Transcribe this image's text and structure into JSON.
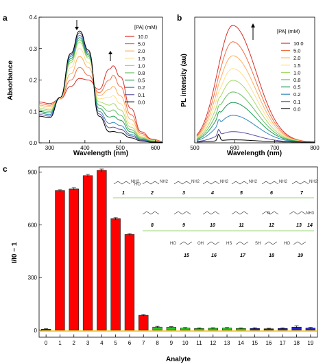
{
  "chart_data": [
    {
      "panel": "a",
      "type": "line",
      "xlabel": "Wavelength (nm)",
      "ylabel": "Absorbance",
      "xlim": [
        270,
        620
      ],
      "ylim": [
        0,
        0.4
      ],
      "xticks": [
        "300",
        "400",
        "500",
        "600"
      ],
      "yticks": [
        "0.0",
        "0.1",
        "0.2",
        "0.3",
        "0.4"
      ],
      "legend_title": "[PA] (mM)",
      "legend_position": "right",
      "series": [
        {
          "name": "10.0",
          "color": "#d73027",
          "x": [
            270,
            300,
            330,
            360,
            385,
            410,
            440,
            470,
            480,
            500,
            530,
            560,
            590,
            620
          ],
          "y": [
            0.13,
            0.125,
            0.14,
            0.18,
            0.205,
            0.2,
            0.17,
            0.235,
            0.245,
            0.21,
            0.11,
            0.035,
            0.012,
            0.005
          ]
        },
        {
          "name": "5.0",
          "color": "#f46d43",
          "x": [
            270,
            300,
            330,
            360,
            385,
            410,
            440,
            470,
            480,
            500,
            530,
            560,
            590,
            620
          ],
          "y": [
            0.125,
            0.12,
            0.14,
            0.2,
            0.24,
            0.215,
            0.16,
            0.2,
            0.215,
            0.18,
            0.09,
            0.03,
            0.01,
            0.005
          ]
        },
        {
          "name": "2.0",
          "color": "#fdae61",
          "x": [
            270,
            300,
            330,
            360,
            385,
            410,
            440,
            470,
            480,
            500,
            530,
            560,
            590,
            620
          ],
          "y": [
            0.12,
            0.115,
            0.14,
            0.22,
            0.275,
            0.24,
            0.15,
            0.17,
            0.18,
            0.15,
            0.075,
            0.025,
            0.009,
            0.004
          ]
        },
        {
          "name": "1.5",
          "color": "#fee08b",
          "x": [
            270,
            300,
            330,
            360,
            385,
            410,
            440,
            470,
            480,
            500,
            530,
            560,
            590,
            620
          ],
          "y": [
            0.115,
            0.11,
            0.145,
            0.24,
            0.3,
            0.255,
            0.14,
            0.145,
            0.15,
            0.125,
            0.06,
            0.02,
            0.008,
            0.004
          ]
        },
        {
          "name": "1.0",
          "color": "#a6d96a",
          "x": [
            270,
            300,
            330,
            360,
            385,
            410,
            440,
            470,
            480,
            500,
            530,
            560,
            590,
            620
          ],
          "y": [
            0.11,
            0.105,
            0.145,
            0.255,
            0.32,
            0.27,
            0.13,
            0.12,
            0.125,
            0.105,
            0.05,
            0.018,
            0.007,
            0.003
          ]
        },
        {
          "name": "0.8",
          "color": "#66bd63",
          "x": [
            270,
            300,
            330,
            360,
            385,
            410,
            440,
            470,
            480,
            500,
            530,
            560,
            590,
            620
          ],
          "y": [
            0.105,
            0.1,
            0.145,
            0.262,
            0.328,
            0.275,
            0.12,
            0.1,
            0.105,
            0.088,
            0.042,
            0.015,
            0.006,
            0.003
          ]
        },
        {
          "name": "0.5",
          "color": "#1a9850",
          "x": [
            270,
            300,
            330,
            360,
            385,
            410,
            440,
            470,
            480,
            500,
            530,
            560,
            590,
            620
          ],
          "y": [
            0.1,
            0.095,
            0.145,
            0.268,
            0.335,
            0.28,
            0.11,
            0.082,
            0.085,
            0.072,
            0.035,
            0.012,
            0.005,
            0.003
          ]
        },
        {
          "name": "0.2",
          "color": "#3288bd",
          "x": [
            270,
            300,
            330,
            360,
            385,
            410,
            440,
            470,
            480,
            500,
            530,
            560,
            590,
            620
          ],
          "y": [
            0.095,
            0.09,
            0.145,
            0.275,
            0.342,
            0.285,
            0.1,
            0.062,
            0.065,
            0.055,
            0.027,
            0.01,
            0.004,
            0.002
          ]
        },
        {
          "name": "0.1",
          "color": "#5e4fa2",
          "x": [
            270,
            300,
            330,
            360,
            385,
            410,
            440,
            470,
            480,
            500,
            530,
            560,
            590,
            620
          ],
          "y": [
            0.09,
            0.085,
            0.145,
            0.28,
            0.35,
            0.29,
            0.092,
            0.048,
            0.05,
            0.043,
            0.022,
            0.008,
            0.003,
            0.002
          ]
        },
        {
          "name": "0.0",
          "color": "#000000",
          "x": [
            270,
            300,
            330,
            360,
            385,
            410,
            440,
            470,
            480,
            500,
            530,
            560,
            590,
            620
          ],
          "y": [
            0.085,
            0.08,
            0.145,
            0.285,
            0.356,
            0.295,
            0.085,
            0.035,
            0.036,
            0.032,
            0.016,
            0.006,
            0.002,
            0.001
          ]
        }
      ]
    },
    {
      "panel": "b",
      "type": "line",
      "xlabel": "Wavelength (nm)",
      "ylabel": "PL intensity (au)",
      "xlim": [
        500,
        800
      ],
      "xticks": [
        "500",
        "600",
        "700",
        "800"
      ],
      "legend_title": "[PA] (mM)",
      "legend_position": "right",
      "series": [
        {
          "name": "10.0",
          "color": "#d73027",
          "peak": 1.0
        },
        {
          "name": "5.0",
          "color": "#f46d43",
          "peak": 0.86
        },
        {
          "name": "2.0",
          "color": "#fdae61",
          "peak": 0.74
        },
        {
          "name": "1.5",
          "color": "#fee08b",
          "peak": 0.63
        },
        {
          "name": "1.0",
          "color": "#a6d96a",
          "peak": 0.53
        },
        {
          "name": "0.8",
          "color": "#66bd63",
          "peak": 0.43
        },
        {
          "name": "0.5",
          "color": "#1a9850",
          "peak": 0.34
        },
        {
          "name": "0.2",
          "color": "#3288bd",
          "peak": 0.23
        },
        {
          "name": "0.1",
          "color": "#5e4fa2",
          "peak": 0.09
        },
        {
          "name": "0.0",
          "color": "#000000",
          "peak": 0.02
        }
      ],
      "peak_wavelength": 595
    },
    {
      "panel": "c",
      "type": "bar",
      "xlabel": "Analyte",
      "ylabel": "I/I0 − 1",
      "ylim": [
        -40,
        930
      ],
      "yticks": [
        "0",
        "300",
        "600",
        "900"
      ],
      "categories": [
        "0",
        "1",
        "2",
        "3",
        "4",
        "5",
        "6",
        "7",
        "8",
        "9",
        "10",
        "11",
        "12",
        "13",
        "14",
        "15",
        "16",
        "17",
        "18",
        "19"
      ],
      "values": [
        5,
        795,
        805,
        880,
        910,
        635,
        545,
        85,
        18,
        17,
        12,
        10,
        11,
        12,
        10,
        10,
        8,
        10,
        18,
        12
      ],
      "errors": [
        3,
        6,
        6,
        8,
        8,
        6,
        5,
        4,
        4,
        3,
        3,
        3,
        3,
        3,
        3,
        4,
        3,
        3,
        7,
        4
      ],
      "colors": [
        "#000000",
        "#ff0000",
        "#ff0000",
        "#ff0000",
        "#ff0000",
        "#ff0000",
        "#ff0000",
        "#ff0000",
        "#22cc22",
        "#22cc22",
        "#22cc22",
        "#22cc22",
        "#22cc22",
        "#22cc22",
        "#22cc22",
        "#2222dd",
        "#2222dd",
        "#2222dd",
        "#2222dd",
        "#2222dd"
      ],
      "structures_row1": [
        {
          "label": "1"
        },
        {
          "label": "2",
          "text": "HO"
        },
        {
          "label": "3"
        },
        {
          "label": "4"
        },
        {
          "label": "5"
        },
        {
          "label": "6"
        },
        {
          "label": "7"
        }
      ],
      "structures_row2": [
        {
          "label": "8"
        },
        {
          "label": "9"
        },
        {
          "label": "10"
        },
        {
          "label": "11"
        },
        {
          "label": "12",
          "text": "N"
        },
        {
          "label": "13"
        },
        {
          "label": "14",
          "text": "NH3"
        }
      ],
      "structures_row3": [
        {
          "label": "15",
          "text": "HO"
        },
        {
          "label": "16",
          "text": "OH"
        },
        {
          "label": "17",
          "text": "HS"
        },
        {
          "label": "18",
          "text": "SH"
        },
        {
          "label": "19",
          "text": "HO"
        }
      ],
      "amine_text": "NH2"
    }
  ],
  "panel_letters": {
    "a": "a",
    "b": "b",
    "c": "c"
  }
}
